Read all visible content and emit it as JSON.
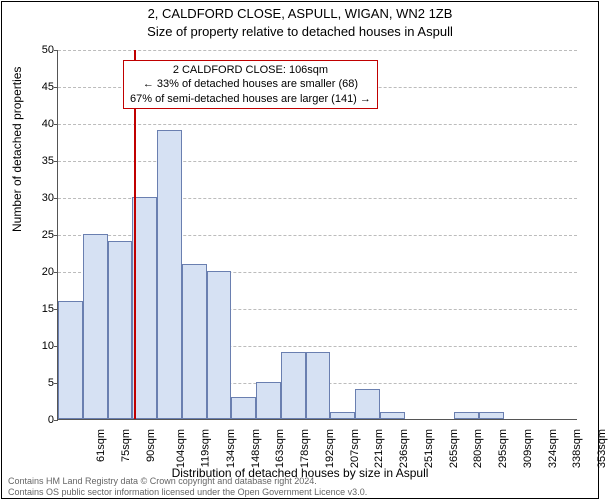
{
  "title_line1": "2, CALDFORD CLOSE, ASPULL, WIGAN, WN2 1ZB",
  "title_line2": "Size of property relative to detached houses in Aspull",
  "y_axis_label": "Number of detached properties",
  "x_axis_label": "Distribution of detached houses by size in Aspull",
  "footer_line1": "Contains HM Land Registry data © Crown copyright and database right 2024.",
  "footer_line2": "Contains OS public sector information licensed under the Open Government Licence v3.0.",
  "chart": {
    "type": "histogram",
    "ylim": [
      0,
      50
    ],
    "ytick_step": 5,
    "x_bin_width_sqm": 14.6,
    "x_start_sqm": 61,
    "background_color": "#ffffff",
    "grid_color": "#bcbcbc",
    "bar_fill": "#d6e1f3",
    "bar_border": "#6a7fb0",
    "axis_color": "#555555",
    "marker_color": "#c00000",
    "marker_x_sqm": 106,
    "x_labels": [
      "61sqm",
      "75sqm",
      "90sqm",
      "104sqm",
      "119sqm",
      "134sqm",
      "148sqm",
      "163sqm",
      "178sqm",
      "192sqm",
      "207sqm",
      "221sqm",
      "236sqm",
      "251sqm",
      "265sqm",
      "280sqm",
      "295sqm",
      "309sqm",
      "324sqm",
      "338sqm",
      "353sqm"
    ],
    "values": [
      16,
      25,
      24,
      30,
      39,
      21,
      20,
      3,
      5,
      9,
      9,
      1,
      4,
      1,
      0,
      0,
      1,
      1,
      0,
      0,
      0
    ]
  },
  "annotation": {
    "line1": "2 CALDFORD CLOSE: 106sqm",
    "line2": "← 33% of detached houses are smaller (68)",
    "line3": "67% of semi-detached houses are larger (141) →",
    "border_color": "#c00000",
    "text_color": "#000000",
    "fontsize": 11
  }
}
